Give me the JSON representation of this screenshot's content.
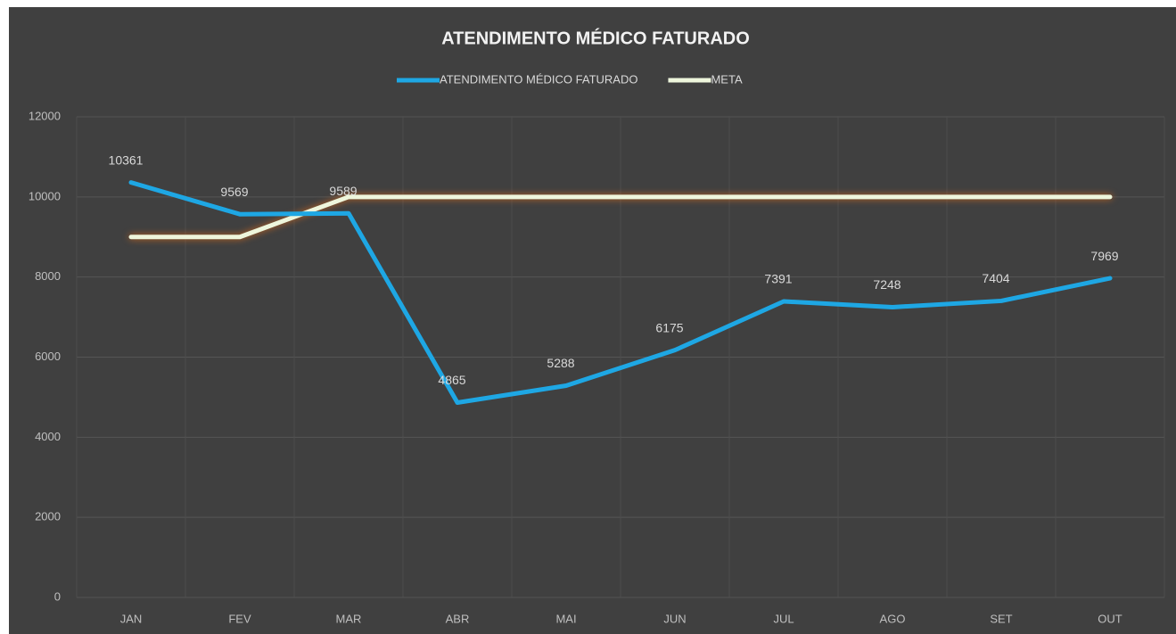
{
  "chart_data": {
    "type": "line",
    "title": "ATENDIMENTO MÉDICO FATURADO",
    "categories": [
      "JAN",
      "FEV",
      "MAR",
      "ABR",
      "MAI",
      "JUN",
      "JUL",
      "AGO",
      "SET",
      "OUT"
    ],
    "series": [
      {
        "name": "ATENDIMENTO MÉDICO FATURADO",
        "color": "#1ea7e4",
        "values": [
          10361,
          9569,
          9589,
          4865,
          5288,
          6175,
          7391,
          7248,
          7404,
          7969
        ],
        "data_labels": true
      },
      {
        "name": "META",
        "color": "#eef6dc",
        "values": [
          9000,
          9000,
          10000,
          10000,
          10000,
          10000,
          10000,
          10000,
          10000,
          10000
        ],
        "data_labels": false
      }
    ],
    "ylim": [
      0,
      12000
    ],
    "yticks": [
      0,
      2000,
      4000,
      6000,
      8000,
      10000,
      12000
    ],
    "grid": true,
    "legend": "top"
  }
}
